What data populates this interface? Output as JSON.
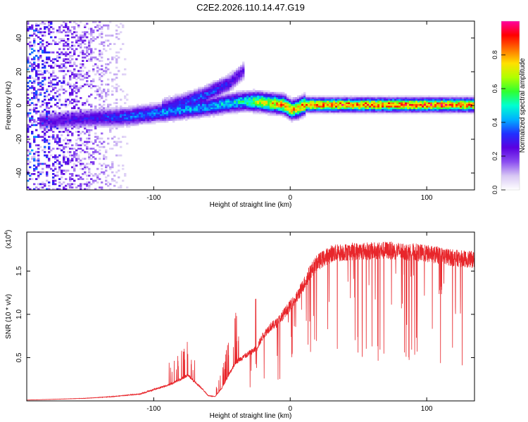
{
  "title": "C2E2.2026.110.14.47.G19",
  "colors": {
    "trace": "#e8262b",
    "axis": "#000000",
    "colormap": [
      "#ffffff",
      "#d8c8f4",
      "#8a4cf0",
      "#5a00e0",
      "#2030ff",
      "#00b0ff",
      "#00ffd0",
      "#30ff30",
      "#b0ff00",
      "#ffe000",
      "#ff7000",
      "#ff0000",
      "#ff00a0"
    ]
  },
  "chart_data": [
    {
      "type": "heatmap",
      "title": "C2E2.2026.110.14.47.G19",
      "xlabel": "Height of straight line (km)",
      "ylabel": "Frequency (Hz)",
      "xlim": [
        -193,
        135
      ],
      "ylim": [
        -50,
        50
      ],
      "x_ticks": [
        -100,
        0,
        100
      ],
      "x_tick_labels": [
        "-100",
        "0",
        "100"
      ],
      "y_ticks": [
        -40,
        -20,
        0,
        20,
        40
      ],
      "y_tick_labels": [
        "-40",
        "-20",
        "0",
        "20",
        "40"
      ],
      "colorbar": {
        "label": "Normalized spectral amplitude",
        "range": [
          0,
          1
        ],
        "ticks": [
          0.0,
          0.2,
          0.4,
          0.6,
          0.8
        ],
        "tick_labels": [
          "0.0",
          "0.2",
          "0.4",
          "0.6",
          "0.8"
        ]
      },
      "ridges": [
        {
          "name": "main",
          "x": [
            -185,
            -150,
            -120,
            -100,
            -80,
            -60,
            -45,
            -35,
            -25,
            -15,
            -5,
            0,
            5,
            10,
            20,
            60,
            100,
            135
          ],
          "y": [
            -10,
            -8,
            -7,
            -5,
            -3,
            -1,
            1,
            2,
            2,
            1,
            0,
            -3,
            -2,
            0,
            0,
            0,
            0,
            0
          ],
          "amplitude": [
            0.25,
            0.3,
            0.38,
            0.42,
            0.45,
            0.45,
            0.5,
            0.55,
            0.7,
            0.8,
            0.85,
            0.8,
            0.85,
            0.9,
            0.92,
            0.92,
            0.92,
            0.9
          ]
        },
        {
          "name": "upper",
          "x": [
            -95,
            -80,
            -65,
            -55,
            -45,
            -35
          ],
          "y": [
            -2,
            1,
            5,
            9,
            13,
            20
          ],
          "amplitude": [
            0.3,
            0.35,
            0.38,
            0.35,
            0.3,
            0.25
          ]
        }
      ]
    },
    {
      "type": "line",
      "xlabel": "Height of straight line (km)",
      "ylabel": "SNR (10 * v/v)",
      "y_scale_note": "(x10^4)",
      "y_scale_base": "(x10",
      "y_scale_exp": "4",
      "y_scale_close": ")",
      "xlim": [
        -193,
        135
      ],
      "ylim": [
        0,
        1.95
      ],
      "x_ticks": [
        -100,
        0,
        100
      ],
      "x_tick_labels": [
        "-100",
        "0",
        "100"
      ],
      "y_ticks": [
        0.5,
        1.0,
        1.5
      ],
      "y_tick_labels": [
        "0.5",
        "1.0",
        "1.5"
      ],
      "series": [
        {
          "name": "SNR",
          "x": [
            -193,
            -170,
            -150,
            -130,
            -110,
            -100,
            -90,
            -80,
            -75,
            -70,
            -65,
            -60,
            -55,
            -50,
            -45,
            -40,
            -35,
            -30,
            -25,
            -20,
            -15,
            -10,
            -5,
            0,
            5,
            10,
            15,
            20,
            25,
            30,
            40,
            50,
            60,
            70,
            80,
            90,
            100,
            110,
            120,
            135
          ],
          "y": [
            0.01,
            0.02,
            0.03,
            0.05,
            0.08,
            0.13,
            0.18,
            0.25,
            0.3,
            0.22,
            0.15,
            0.06,
            0.05,
            0.15,
            0.3,
            0.45,
            0.5,
            0.55,
            0.6,
            0.75,
            0.85,
            0.9,
            1.0,
            1.1,
            1.2,
            1.35,
            1.5,
            1.6,
            1.65,
            1.7,
            1.72,
            1.73,
            1.73,
            1.74,
            1.73,
            1.72,
            1.7,
            1.68,
            1.65,
            1.63
          ]
        }
      ]
    }
  ]
}
